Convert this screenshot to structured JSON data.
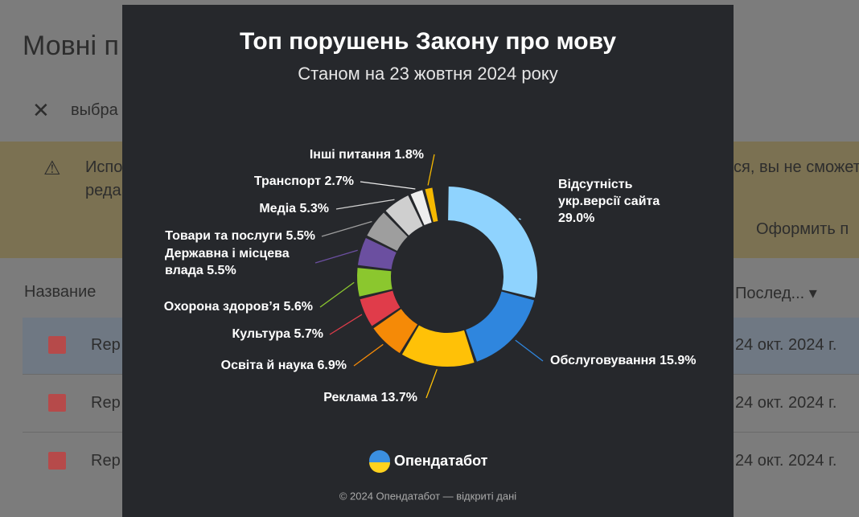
{
  "background": {
    "page_title": "Мовні п",
    "search_text": "выбра",
    "warning_lines": [
      "Испо",
      "реда"
    ],
    "warning_right": "ся, вы не сможет",
    "action": "Оформить п",
    "column_name": "Название",
    "column_modified": "Послед...",
    "rows": [
      {
        "name": "Rep",
        "date": "24 окт. 2024 г."
      },
      {
        "name": "Rep",
        "date": "24 окт. 2024 г."
      },
      {
        "name": "Rep",
        "date": "24 окт. 2024 г."
      }
    ]
  },
  "chart_data": {
    "type": "donut",
    "title": "Топ порушень Закону про мову",
    "subtitle": "Станом на 23 жовтня 2024 року",
    "categories": [
      "Відсутність укр.версії сайта",
      "Обслуговування",
      "Реклама",
      "Освіта й наука",
      "Культура",
      "Охорона здоров’я",
      "Державна і місцева влада",
      "Товари та послуги",
      "Медіа",
      "Транспорт",
      "Інші питання"
    ],
    "values": [
      29.0,
      15.9,
      13.7,
      6.9,
      5.7,
      5.6,
      5.5,
      5.5,
      5.3,
      2.7,
      1.8
    ],
    "value_labels": [
      "29.0%",
      "15.9%",
      "13.7%",
      "6.9%",
      "5.7%",
      "5.6%",
      "5.5%",
      "5.5%",
      "5.3%",
      "2.7%",
      "1.8%"
    ],
    "colors": [
      "#8fd3fe",
      "#2f86de",
      "#ffc107",
      "#f58a07",
      "#e03c4a",
      "#8bc72e",
      "#6b4fa0",
      "#9e9e9e",
      "#cfcfcf",
      "#eeeeee",
      "#f5b800"
    ]
  },
  "footer": {
    "brand": "Опендатабот",
    "copyright": "© 2024 Опендатабот — відкриті дані"
  }
}
